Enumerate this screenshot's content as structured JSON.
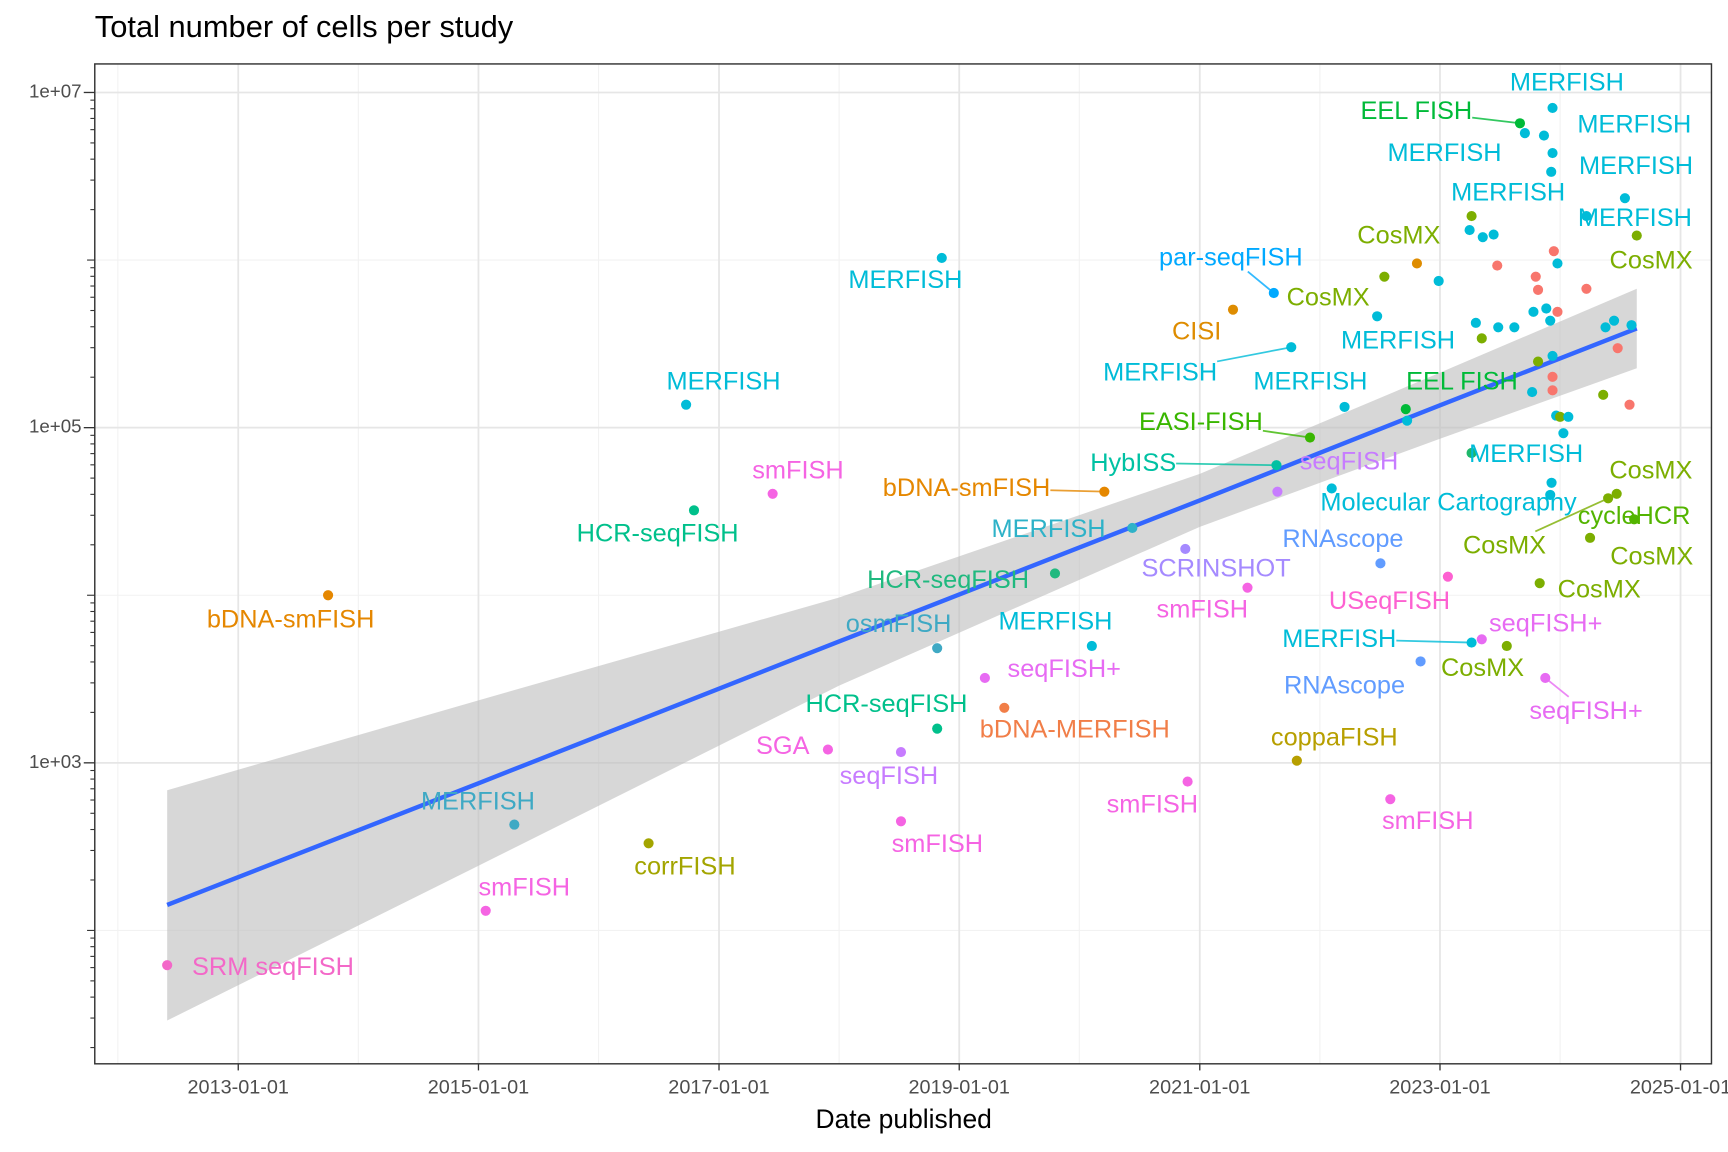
{
  "chart_data": {
    "type": "scatter",
    "title": "Total number of cells per study",
    "xlabel": "Date published",
    "log_y": true,
    "grid": true,
    "xlim": [
      "2011-10-23",
      "2025-04-05"
    ],
    "xticks": [
      "2013-01-01",
      "2015-01-01",
      "2017-01-01",
      "2019-01-01",
      "2021-01-01",
      "2023-01-01",
      "2025-01-01"
    ],
    "minor_xticks": [
      "2012-01-01",
      "2014-01-01",
      "2016-01-01",
      "2018-01-01",
      "2020-01-01",
      "2022-01-01",
      "2024-01-01"
    ],
    "ylim": [
      16,
      14800000
    ],
    "yticks": [
      {
        "value": 1000,
        "label": "1e+03"
      },
      {
        "value": 100000,
        "label": "1e+05"
      },
      {
        "value": 10000000,
        "label": "1e+07"
      }
    ],
    "minor_yticks": [
      100,
      10000,
      1000000
    ],
    "logticks": [
      20,
      30,
      40,
      50,
      60,
      70,
      80,
      90,
      200,
      300,
      400,
      500,
      600,
      700,
      800,
      900,
      2000,
      3000,
      4000,
      5000,
      6000,
      7000,
      8000,
      9000,
      20000,
      30000,
      40000,
      50000,
      60000,
      70000,
      80000,
      90000,
      200000,
      300000,
      400000,
      500000,
      600000,
      700000,
      800000,
      900000,
      2000000,
      3000000,
      4000000,
      5000000,
      6000000,
      7000000,
      8000000,
      9000000
    ],
    "x": [
      "2012-05-30",
      "2013-10-01",
      "2015-01-23",
      "2015-04-20",
      "2016-06-01",
      "2016-09-23",
      "2016-10-17",
      "2017-06-13",
      "2017-11-28",
      "2018-07-08",
      "2018-07-08",
      "2018-10-26",
      "2018-10-26",
      "2018-11-09",
      "2019-03-20",
      "2019-05-18",
      "2019-10-19",
      "2020-02-08",
      "2020-03-17",
      "2020-06-10",
      "2020-11-18",
      "2020-11-25",
      "2021-04-12",
      "2021-05-26",
      "2021-08-14",
      "2021-08-22",
      "2021-08-25",
      "2021-10-06",
      "2021-10-23",
      "2021-12-02",
      "2022-02-06",
      "2022-03-17",
      "2022-06-24",
      "2022-07-04",
      "2022-07-16",
      "2022-08-03",
      "2022-09-19",
      "2022-11-03",
      "2023-01-25",
      "2023-04-07",
      "2023-04-07",
      "2023-04-01",
      "2023-12-06",
      "2023-05-08",
      "2023-07-23",
      "2023-09-01",
      "2023-12-09",
      "2023-12-09",
      "2023-11-13",
      "2023-12-05",
      "2024-03-21",
      "2023-11-17",
      "2023-10-31",
      "2024-04-01",
      "2024-05-26",
      "2024-06-21",
      "2024-08-13",
      "2024-08-21",
      "2024-07-16",
      "2022-10-23",
      "2022-12-28",
      "2022-09-23",
      "2023-04-20",
      "2023-05-11",
      "2023-06-13",
      "2023-06-24",
      "2023-05-08",
      "2023-06-27",
      "2023-08-15",
      "2023-04-07",
      "2023-10-12",
      "2023-10-19",
      "2023-10-26",
      "2023-10-26",
      "2023-10-08",
      "2023-11-20",
      "2023-12-02",
      "2023-12-09",
      "2023-12-09",
      "2023-12-09",
      "2023-12-13",
      "2023-12-24",
      "2023-12-24",
      "2023-12-20",
      "2024-01-01",
      "2024-01-11",
      "2024-01-26",
      "2023-12-02",
      "2024-03-21",
      "2024-05-11",
      "2024-05-18",
      "2024-06-13",
      "2024-06-24",
      "2024-08-05",
      "2024-07-30",
      "2023-09-16"
    ],
    "values": [
      62,
      10000,
      131,
      428,
      331,
      137000,
      32100,
      40300,
      1200,
      1160,
      448,
      4830,
      1600,
      1030000,
      3210,
      2130,
      13500,
      4980,
      41500,
      25200,
      18900,
      773,
      506000,
      11100,
      636000,
      59700,
      41500,
      302000,
      1030,
      87300,
      43400,
      133000,
      462000,
      15500,
      796000,
      607,
      129000,
      4030,
      12900,
      5220,
      1830000,
      1510000,
      46900,
      5460,
      4980,
      6550000,
      8090000,
      4350000,
      5530000,
      3360000,
      1830000,
      3210,
      11800,
      22000,
      37900,
      40300,
      28400,
      1400000,
      2340000,
      955000,
      750000,
      110000,
      422000,
      1370000,
      1420000,
      927000,
      341000,
      397000,
      397000,
      70600,
      491000,
      796000,
      664000,
      248000,
      163000,
      514000,
      435000,
      268000,
      201000,
      167000,
      1130000,
      955000,
      491000,
      118000,
      116000,
      92700,
      116000,
      39700,
      674000,
      157000,
      397000,
      435000,
      298000,
      409000,
      137000,
      5720000
    ],
    "labels": [
      "SRM seqFISH",
      "bDNA-smFISH",
      "smFISH",
      "MERFISH",
      "corrFISH",
      "MERFISH",
      "HCR-seqFISH",
      "smFISH",
      "SGA",
      "seqFISH",
      "smFISH",
      "osmFISH",
      "HCR-seqFISH",
      "MERFISH",
      "seqFISH+",
      "bDNA-MERFISH",
      "HCR-seqFISH",
      "MERFISH",
      "bDNA-smFISH",
      "MERFISH",
      "SCRINSHOT",
      "smFISH",
      "CISI",
      "smFISH",
      "par-seqFISH",
      "HybISS",
      "seqFISH",
      "MERFISH",
      "coppaFISH",
      "EASI-FISH",
      "Molecular Cartography",
      "MERFISH",
      "MERFISH",
      "RNAscope",
      "CosMX",
      "smFISH",
      "EEL FISH",
      "RNAscope",
      "USeqFISH",
      "MERFISH",
      "CosMX",
      "MERFISH",
      "MERFISH",
      "seqFISH+",
      "CosMX",
      "EEL FISH",
      "MERFISH",
      "MERFISH",
      "MERFISH",
      "MERFISH",
      "MERFISH",
      "seqFISH+",
      "CosMX",
      "CosMX",
      "CosMX",
      "CosMX",
      "cycleHCR",
      "CosMX",
      null,
      null,
      null,
      null,
      null,
      null,
      null,
      null,
      null,
      null,
      null,
      null,
      null,
      null,
      null,
      null,
      null,
      null,
      null,
      null,
      null,
      null,
      null,
      null,
      null,
      null,
      null,
      null,
      null,
      null,
      null,
      null,
      null,
      null,
      null,
      null,
      null,
      null
    ],
    "colors": [
      "#f368c8",
      "#e58700",
      "#f564e3",
      "#3fa9c4",
      "#a3a500",
      "#00bcd8",
      "#00c08b",
      "#f564e3",
      "#f564e3",
      "#c77cff",
      "#f564e3",
      "#3fa9c4",
      "#00c08b",
      "#00bcd8",
      "#e76bf3",
      "#f17e48",
      "#20b97f",
      "#00bcd8",
      "#e58700",
      "#2eb2c8",
      "#a58aff",
      "#f564e3",
      "#de8c00",
      "#f564e3",
      "#00a9ff",
      "#00c1a3",
      "#c77cff",
      "#00bcd8",
      "#b79f00",
      "#39b600",
      "#00bcd8",
      "#00bcd8",
      "#00bcd8",
      "#619cff",
      "#7cae00",
      "#f564e3",
      "#00ba38",
      "#619cff",
      "#fd61d1",
      "#00bcd8",
      "#7cae00",
      "#00bcd8",
      "#00bcd8",
      "#e76bf3",
      "#7cae00",
      "#00ba38",
      "#00bcd8",
      "#00bcd8",
      "#00bcd8",
      "#00bcd8",
      "#00bcd8",
      "#e76bf3",
      "#7cae00",
      "#7cae00",
      "#7cae00",
      "#7cae00",
      "#53b400",
      "#7cae00",
      "#00bcd8",
      "#de8c00",
      "#00bcd8",
      "#00bcd8",
      "#00bcd8",
      "#00bcd8",
      "#00bcd8",
      "#f8766d",
      "#7cae00",
      "#00bcd8",
      "#00bcd8",
      "#1fb86b",
      "#00bcd8",
      "#f8766d",
      "#f8766d",
      "#7cae00",
      "#00bcd8",
      "#00bcd8",
      "#00bcd8",
      "#00bcd8",
      "#f8766d",
      "#f8766d",
      "#f8766d",
      "#00bcd8",
      "#f8766d",
      "#00bcd8",
      "#7cae00",
      "#00bcd8",
      "#00bcd8",
      "#00bcd8",
      "#f8766d",
      "#7cae00",
      "#00bcd8",
      "#00bcd8",
      "#f8766d",
      "#00bcd8",
      "#f8766d",
      "#00bcd8"
    ],
    "fit": {
      "color": "#3366ff",
      "band_color": "#bdbdbd",
      "x": [
        "2012-05-30",
        "2015-01-01",
        "2018-01-01",
        "2021-01-01",
        "2023-01-01",
        "2024-08-21"
      ],
      "values": [
        142,
        755,
        5300,
        36800,
        136000,
        391000
      ],
      "lower": [
        29,
        243,
        2890,
        25600,
        85900,
        226000
      ],
      "upper": [
        686,
        2360,
        9700,
        53000,
        213000,
        674000
      ]
    }
  }
}
